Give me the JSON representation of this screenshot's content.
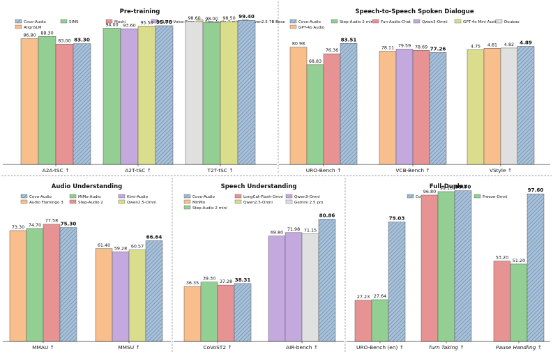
{
  "colors": {
    "Covo-Audio": "#a9c1d9",
    "Covo-Audio-hatch": "#6f8fb0",
    "SIMS": "#93cf93",
    "Moshi": "#e89393",
    "GLM-4-Voice-Base": "#c3a9dd",
    "Step-Audio-2-mini-Base": "#d9dd8c",
    "Qwen2.5-7B-Base": "#e0e0e0",
    "AlignSLM": "#f8be8c",
    "Step-Audio 2 mini": "#93cf93",
    "Fun-Audio-Chat": "#e89393",
    "Qwen3-Omni": "#c3a9dd",
    "GPT-4o Mini Audio": "#d9dd8c",
    "Doubao": "#e0e0e0",
    "GPT-4o Audio": "#f8be8c",
    "MiMo-Audio": "#93cf93",
    "Kimi-Audio": "#c3a9dd",
    "Audio Flamingo 3": "#f8be8c",
    "Step-Audio 2": "#e89393",
    "Qwen2.5-Omni": "#d9dd8c",
    "MinMo": "#f8be8c",
    "LongCat-Flash-Omni": "#e89393",
    "Qwen2.5-Omni-su": "#c3a9dd",
    "Gemini 2.5 pro": "#e0e0e0",
    "Freeze-Omni": "#93cf93"
  },
  "chart_data": [
    {
      "type": "bar",
      "title": "Pre-training",
      "legend": [
        "Covo-Audio",
        "SIMS",
        "Moshi",
        "GLM-4-Voice-Base",
        "Step-Audio-2-mini-Base",
        "Qwen2.5-7B-Base",
        "AlignSLM"
      ],
      "groups": [
        {
          "label": "A2A-tSC ↑",
          "bars": [
            {
              "model": "AlignSLM",
              "value": 86.8,
              "text": "86.80"
            },
            {
              "model": "SIMS",
              "value": 88.3,
              "text": "88.30"
            },
            {
              "model": "Moshi",
              "value": 83.0,
              "text": "83.00"
            },
            {
              "model": "Covo-Audio",
              "value": 83.3,
              "text": "83.30",
              "bold": true
            }
          ]
        },
        {
          "label": "A2T-tSC ↑",
          "bars": [
            {
              "model": "SIMS",
              "value": 94.0,
              "text": "94.00"
            },
            {
              "model": "GLM-4-Voice-Base",
              "value": 93.6,
              "text": "93.60"
            },
            {
              "model": "Step-Audio-2-mini-Base",
              "value": 95.5,
              "text": "95.50"
            },
            {
              "model": "Covo-Audio",
              "value": 95.7,
              "text": "95.70",
              "bold": true
            }
          ]
        },
        {
          "label": "T2T-tSC ↑",
          "bars": [
            {
              "model": "Qwen2.5-7B-Base",
              "value": 98.6,
              "text": "98.60"
            },
            {
              "model": "SIMS",
              "value": 98.0,
              "text": "98.00"
            },
            {
              "model": "Step-Audio-2-mini-Base",
              "value": 98.5,
              "text": "98.50"
            },
            {
              "model": "Covo-Audio",
              "value": 99.4,
              "text": "99.40",
              "bold": true
            }
          ]
        }
      ]
    },
    {
      "type": "bar",
      "title": "Speech-to-Speech Spoken Dialogue",
      "legend": [
        "Covo-Audio",
        "Step-Audio 2 mini",
        "Fun-Audio-Chat",
        "Qwen3-Omni",
        "GPT-4o Mini Audio",
        "Doubao",
        "GPT-4o Audio"
      ],
      "groups": [
        {
          "label": "URO-Bench ↑",
          "bars": [
            {
              "model": "GPT-4o Audio",
              "value": 80.98,
              "text": "80.98"
            },
            {
              "model": "Step-Audio 2 mini",
              "value": 68.83,
              "text": "68.83"
            },
            {
              "model": "Fun-Audio-Chat",
              "value": 76.36,
              "text": "76.36"
            },
            {
              "model": "Covo-Audio",
              "value": 83.51,
              "text": "83.51",
              "bold": true
            }
          ]
        },
        {
          "label": "VCB-Bench ↑",
          "bars": [
            {
              "model": "GPT-4o Audio",
              "value": 78.11,
              "text": "78.11"
            },
            {
              "model": "Qwen3-Omni",
              "value": 79.59,
              "text": "79.59"
            },
            {
              "model": "Fun-Audio-Chat",
              "value": 78.69,
              "text": "78.69"
            },
            {
              "model": "Covo-Audio",
              "value": 77.26,
              "text": "77.26",
              "bold": true
            }
          ]
        },
        {
          "label": "VStyle ↑",
          "bars": [
            {
              "model": "GPT-4o Mini Audio",
              "value": 4.75,
              "text": "4.75"
            },
            {
              "model": "GPT-4o Audio",
              "value": 4.81,
              "text": "4.81"
            },
            {
              "model": "Doubao",
              "value": 4.82,
              "text": "4.82"
            },
            {
              "model": "Covo-Audio",
              "value": 4.89,
              "text": "4.89",
              "bold": true
            }
          ]
        }
      ]
    },
    {
      "type": "bar",
      "title": "Audio Understanding",
      "legend": [
        "Covo-Audio",
        "MiMo-Audio",
        "Kimi-Audio",
        "Audio Flamingo 3",
        "Step-Audio 2",
        "Qwen2.5-Omni"
      ],
      "groups": [
        {
          "label": "MMAU ↑",
          "bars": [
            {
              "model": "Audio Flamingo 3",
              "value": 73.3,
              "text": "73.30"
            },
            {
              "model": "MiMo-Audio",
              "value": 74.7,
              "text": "74.70"
            },
            {
              "model": "Step-Audio 2",
              "value": 77.58,
              "text": "77.58"
            },
            {
              "model": "Covo-Audio",
              "value": 75.3,
              "text": "75.30",
              "bold": true
            }
          ]
        },
        {
          "label": "MMSU ↑",
          "bars": [
            {
              "model": "Audio Flamingo 3",
              "value": 61.4,
              "text": "61.40"
            },
            {
              "model": "Kimi-Audio",
              "value": 59.28,
              "text": "59.28"
            },
            {
              "model": "Qwen2.5-Omni",
              "value": 60.57,
              "text": "60.57"
            },
            {
              "model": "Covo-Audio",
              "value": 66.64,
              "text": "66.64",
              "bold": true
            }
          ]
        }
      ]
    },
    {
      "type": "bar",
      "title": "Speech Understanding",
      "legend": [
        "Covo-Audio",
        "LongCat-Flash-Omni",
        "Qwen3-Omni",
        "MinMo",
        "Qwen2.5-Omni",
        "Gemini 2.5 pro",
        "Step-Audio 2 mini"
      ],
      "groups": [
        {
          "label": "CoVoST2 ↑",
          "bars": [
            {
              "model": "MinMo",
              "value": 36.35,
              "text": "36.35"
            },
            {
              "model": "Step-Audio 2 mini",
              "value": 39.3,
              "text": "39.30"
            },
            {
              "model": "LongCat-Flash-Omni",
              "value": 37.28,
              "text": "37.28"
            },
            {
              "model": "Covo-Audio",
              "value": 38.31,
              "text": "38.31",
              "bold": true
            }
          ]
        },
        {
          "label": "AIR-bench ↑",
          "bars": [
            {
              "model": "Qwen2.5-Omni-su",
              "value": 69.8,
              "text": "69.80"
            },
            {
              "model": "Qwen3-Omni",
              "value": 71.98,
              "text": "71.98"
            },
            {
              "model": "Gemini 2.5 pro",
              "value": 71.15,
              "text": "71.15"
            },
            {
              "model": "Covo-Audio",
              "value": 80.86,
              "text": "80.86",
              "bold": true
            }
          ]
        }
      ]
    },
    {
      "type": "bar",
      "title": "Full-Duplex",
      "legend": [
        "Covo-Audio",
        "Moshi",
        "Freeze-Omni"
      ],
      "groups": [
        {
          "label": "URO-Bench (en) ↑",
          "bars": [
            {
              "model": "Moshi",
              "value": 27.23,
              "text": "27.23"
            },
            {
              "model": "Freeze-Omni",
              "value": 27.64,
              "text": "27.64"
            },
            {
              "model": "Covo-Audio",
              "value": 79.03,
              "text": "79.03",
              "bold": true
            }
          ]
        },
        {
          "label": "Turn Taking ↑",
          "italic": true,
          "bars": [
            {
              "model": "Moshi",
              "value": 96.8,
              "text": "96.80"
            },
            {
              "model": "Freeze-Omni",
              "value": 99.1,
              "text": "99.10"
            },
            {
              "model": "Covo-Audio",
              "value": 99.7,
              "text": "99.70",
              "bold": true
            }
          ]
        },
        {
          "label": "Pause Handling ↑",
          "italic": true,
          "bars": [
            {
              "model": "Moshi",
              "value": 53.2,
              "text": "53.20"
            },
            {
              "model": "Freeze-Omni",
              "value": 51.2,
              "text": "51.20"
            },
            {
              "model": "Covo-Audio",
              "value": 97.6,
              "text": "97.60",
              "bold": true
            }
          ]
        }
      ]
    }
  ]
}
